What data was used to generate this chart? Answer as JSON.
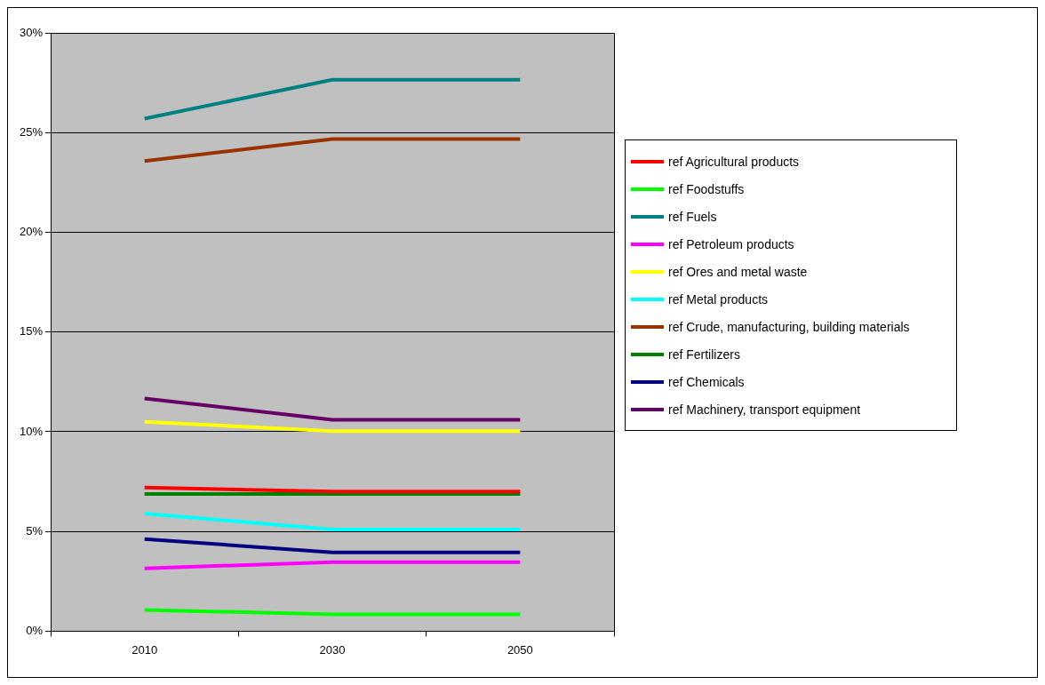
{
  "chart_data": {
    "type": "line",
    "categories": [
      "2010",
      "2030",
      "2050"
    ],
    "series": [
      {
        "name": "ref Agricultural products",
        "color": "#ff0000",
        "values": [
          7.2,
          7.0,
          7.0
        ]
      },
      {
        "name": "ref Foodstuffs",
        "color": "#00ff00",
        "values": [
          1.07,
          0.84,
          0.84
        ]
      },
      {
        "name": "ref Fuels",
        "color": "#008080",
        "values": [
          25.7,
          27.65,
          27.65
        ]
      },
      {
        "name": "ref Petroleum products",
        "color": "#ff00ff",
        "values": [
          3.15,
          3.46,
          3.46
        ]
      },
      {
        "name": "ref Ores and metal waste",
        "color": "#ffff00",
        "values": [
          10.5,
          10.03,
          10.03
        ]
      },
      {
        "name": "ref Metal products",
        "color": "#00ffff",
        "values": [
          5.9,
          5.1,
          5.1
        ]
      },
      {
        "name": "ref Crude, manufacturing, building materials",
        "color": "#993300",
        "values": [
          23.57,
          24.68,
          24.68
        ]
      },
      {
        "name": "ref Fertilizers",
        "color": "#008000",
        "values": [
          6.88,
          6.88,
          6.88
        ]
      },
      {
        "name": "ref Chemicals",
        "color": "#000080",
        "values": [
          4.62,
          3.95,
          3.95
        ]
      },
      {
        "name": "ref Machinery, transport equipment",
        "color": "#660066",
        "values": [
          11.67,
          10.6,
          10.6
        ]
      }
    ],
    "ylim": [
      0,
      30
    ],
    "yticks": [
      {
        "value": 0,
        "label": "0%"
      },
      {
        "value": 5,
        "label": "5%"
      },
      {
        "value": 10,
        "label": "10%"
      },
      {
        "value": 15,
        "label": "15%"
      },
      {
        "value": 20,
        "label": "20%"
      },
      {
        "value": 25,
        "label": "25%"
      },
      {
        "value": 30,
        "label": "30%"
      }
    ],
    "grid": "y",
    "legend": "right",
    "marker": "none",
    "line_style": "solid"
  }
}
